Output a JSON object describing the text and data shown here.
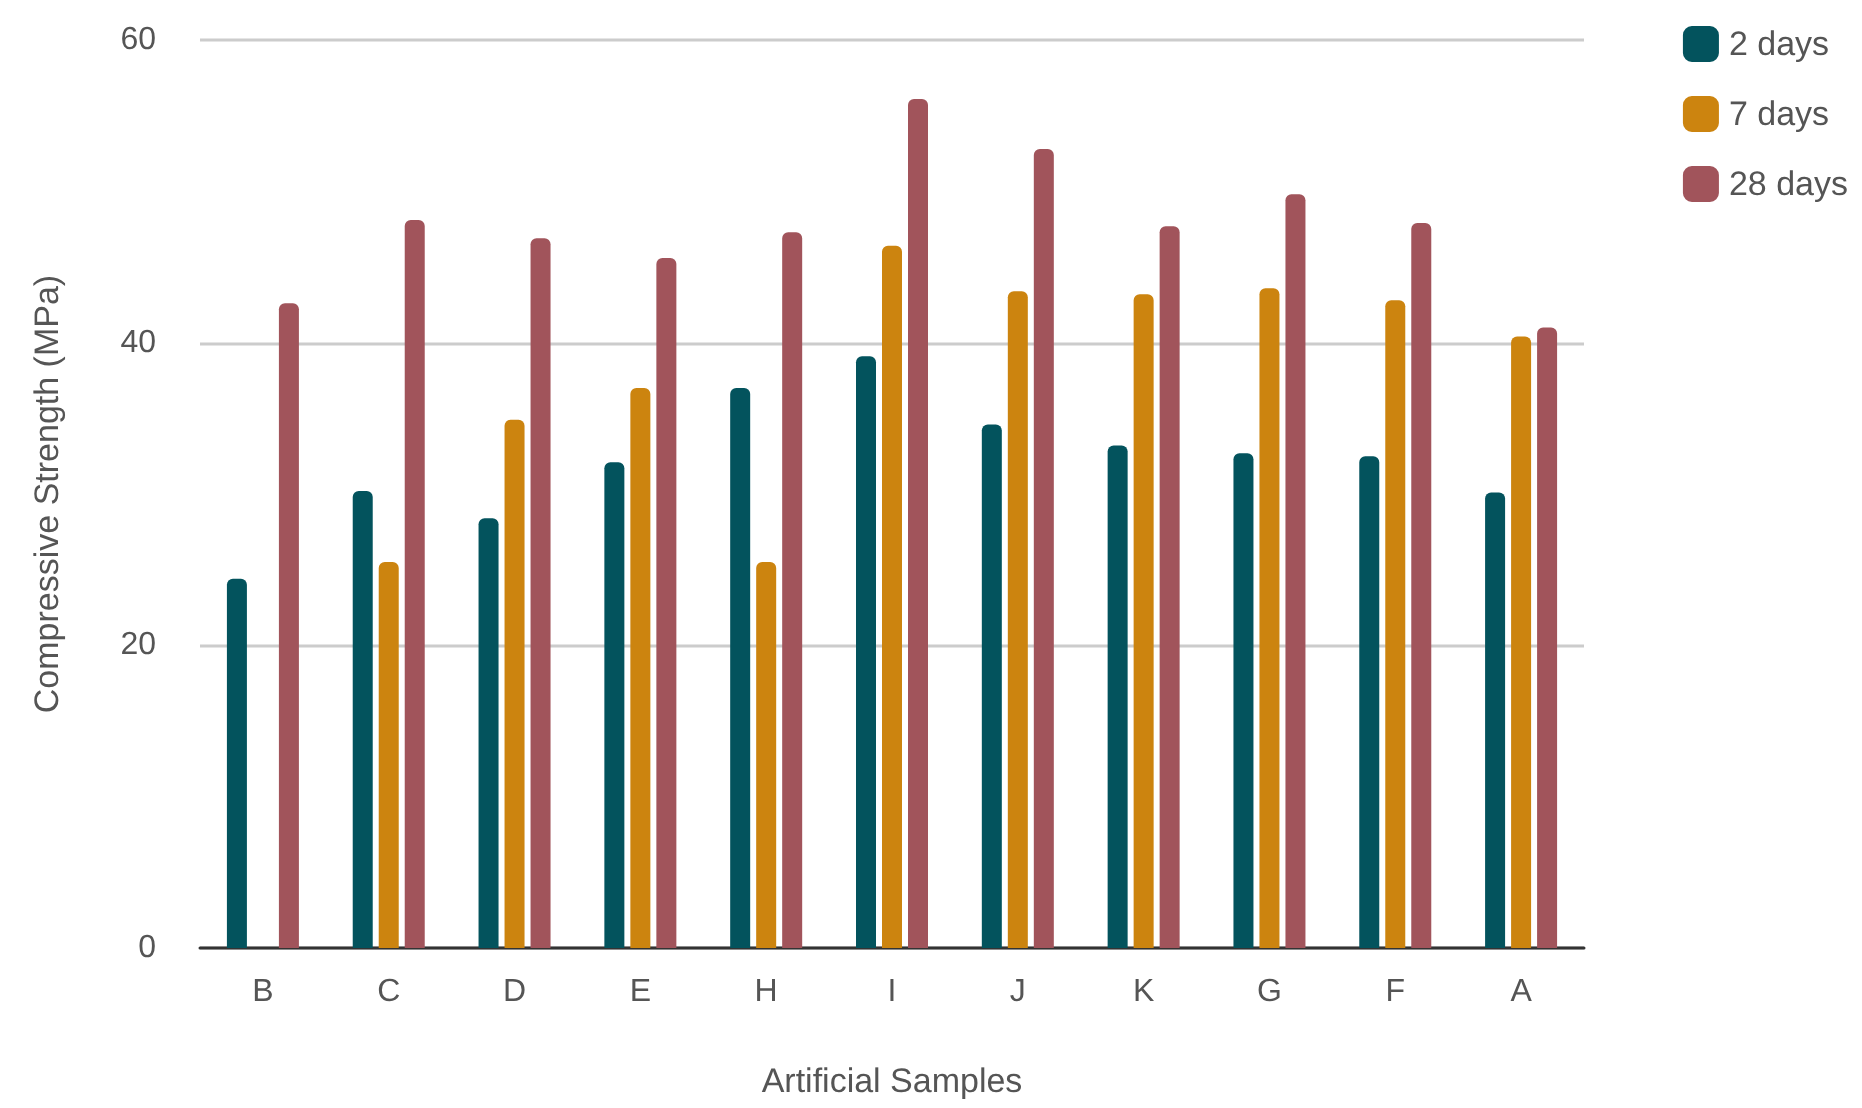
{
  "chart_data": {
    "type": "bar",
    "xlabel": "Artificial Samples",
    "ylabel": "Compressive Strength (MPa)",
    "categories": [
      "B",
      "C",
      "D",
      "E",
      "H",
      "I",
      "J",
      "K",
      "G",
      "F",
      "A"
    ],
    "series": [
      {
        "name": "2 days",
        "color": "#03535d",
        "values": [
          24.4,
          30.2,
          28.4,
          32.1,
          37.0,
          39.1,
          34.6,
          33.2,
          32.7,
          32.5,
          30.1
        ]
      },
      {
        "name": "7 days",
        "color": "#cc840f",
        "values": [
          null,
          25.5,
          34.9,
          37.0,
          25.5,
          46.4,
          43.4,
          43.2,
          43.6,
          42.8,
          40.4
        ]
      },
      {
        "name": "28 days",
        "color": "#a1545b",
        "values": [
          42.6,
          48.1,
          46.9,
          45.6,
          47.3,
          56.1,
          52.8,
          47.7,
          49.8,
          47.9,
          41.0
        ]
      }
    ],
    "ylim": [
      0,
      60
    ],
    "yticks": [
      0,
      20,
      40,
      60
    ],
    "grid": "y",
    "legend": "top right"
  }
}
